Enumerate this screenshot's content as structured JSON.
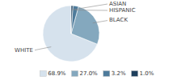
{
  "chart_data": {
    "type": "pie",
    "categories": [
      "WHITE",
      "BLACK",
      "HISPANIC",
      "ASIAN"
    ],
    "values": [
      68.9,
      27.0,
      3.2,
      1.0
    ],
    "value_labels": [
      "68.9%",
      "27.0%",
      "3.2%",
      "1.0%"
    ],
    "colors": [
      "#d6e2ed",
      "#84a8be",
      "#4e7b9b",
      "#1d3f5c"
    ],
    "legend": "bottom"
  }
}
